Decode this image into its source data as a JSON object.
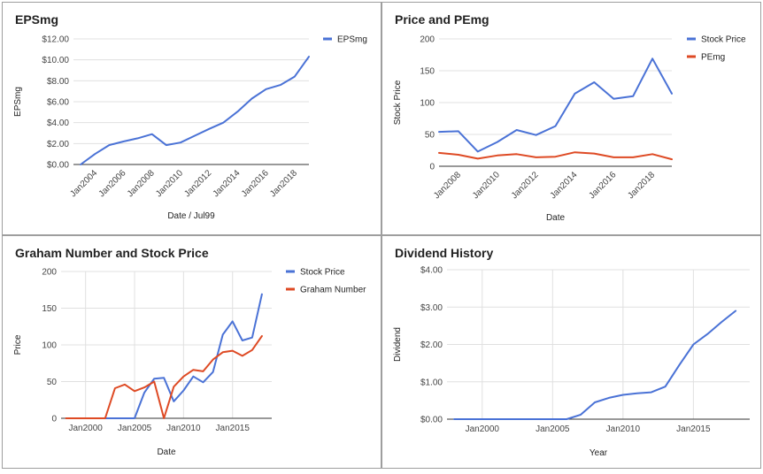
{
  "colors": {
    "blue": "#4a72d6",
    "red": "#de4a24"
  },
  "chart_data": [
    {
      "id": "eps",
      "type": "line",
      "title": "EPSmg",
      "xlabel": "Date / Jul99",
      "ylabel": "EPSmg",
      "xlim": [
        2002.5,
        2019
      ],
      "ylim": [
        0,
        12
      ],
      "xticks": [
        2004,
        2006,
        2008,
        2010,
        2012,
        2014,
        2016,
        2018
      ],
      "xtick_labels": [
        "Jan2004",
        "Jan2006",
        "Jan2008",
        "Jan2010",
        "Jan2012",
        "Jan2014",
        "Jan2016",
        "Jan2018"
      ],
      "xtick_rotate": true,
      "yticks": [
        0,
        2,
        4,
        6,
        8,
        10,
        12
      ],
      "ytick_labels": [
        "$0.00",
        "$2.00",
        "$4.00",
        "$6.00",
        "$8.00",
        "$10.00",
        "$12.00"
      ],
      "vgrid": false,
      "legend": "top-right",
      "series": [
        {
          "name": "EPSmg",
          "color": "#4a72d6",
          "x": [
            2003,
            2004,
            2005,
            2006,
            2007,
            2008,
            2009,
            2010,
            2011,
            2012,
            2013,
            2014,
            2015,
            2016,
            2017,
            2018,
            2019
          ],
          "y": [
            0.0,
            1.0,
            1.85,
            2.2,
            2.5,
            2.9,
            1.85,
            2.1,
            2.75,
            3.4,
            4.0,
            5.05,
            6.3,
            7.2,
            7.6,
            8.4,
            10.3
          ]
        }
      ]
    },
    {
      "id": "price-pe",
      "type": "line",
      "title": "Price and PEmg",
      "xlabel": "Date",
      "ylabel": "Stock Price",
      "xlim": [
        2007,
        2019
      ],
      "ylim": [
        0,
        200
      ],
      "xticks": [
        2008,
        2010,
        2012,
        2014,
        2016,
        2018
      ],
      "xtick_labels": [
        "Jan2008",
        "Jan2010",
        "Jan2012",
        "Jan2014",
        "Jan2016",
        "Jan2018"
      ],
      "xtick_rotate": true,
      "yticks": [
        0,
        50,
        100,
        150,
        200
      ],
      "ytick_labels": [
        "0",
        "50",
        "100",
        "150",
        "200"
      ],
      "vgrid": false,
      "legend": "top-right",
      "series": [
        {
          "name": "Stock Price",
          "color": "#4a72d6",
          "x": [
            2007,
            2008,
            2009,
            2010,
            2011,
            2012,
            2013,
            2014,
            2015,
            2016,
            2017,
            2018,
            2019
          ],
          "y": [
            54,
            55,
            23,
            38,
            57,
            49,
            63,
            114,
            132,
            106,
            110,
            169,
            114
          ]
        },
        {
          "name": "PEmg",
          "color": "#de4a24",
          "x": [
            2007,
            2008,
            2009,
            2010,
            2011,
            2012,
            2013,
            2014,
            2015,
            2016,
            2017,
            2018,
            2019
          ],
          "y": [
            21,
            18,
            12,
            17,
            19,
            14,
            15,
            22,
            20,
            14,
            14,
            19,
            11
          ]
        }
      ]
    },
    {
      "id": "graham",
      "type": "line",
      "title": "Graham Number and Stock Price",
      "xlabel": "Date",
      "ylabel": "Price",
      "xlim": [
        1997.5,
        2019
      ],
      "ylim": [
        0,
        200
      ],
      "xticks": [
        2000,
        2005,
        2010,
        2015
      ],
      "xtick_labels": [
        "Jan2000",
        "Jan2005",
        "Jan2010",
        "Jan2015"
      ],
      "xtick_rotate": false,
      "yticks": [
        0,
        50,
        100,
        150,
        200
      ],
      "ytick_labels": [
        "0",
        "50",
        "100",
        "150",
        "200"
      ],
      "vgrid": true,
      "legend": "top-right",
      "series": [
        {
          "name": "Stock Price",
          "color": "#4a72d6",
          "x": [
            1998,
            2005,
            2006,
            2007,
            2008,
            2009,
            2010,
            2011,
            2012,
            2013,
            2014,
            2015,
            2016,
            2017,
            2018
          ],
          "y": [
            0,
            0,
            35,
            54,
            55,
            23,
            38,
            57,
            49,
            63,
            114,
            132,
            106,
            110,
            169
          ]
        },
        {
          "name": "Graham Number",
          "color": "#de4a24",
          "x": [
            1998,
            2002,
            2003,
            2004,
            2005,
            2006,
            2007,
            2008,
            2009,
            2010,
            2011,
            2012,
            2013,
            2014,
            2015,
            2016,
            2017,
            2018
          ],
          "y": [
            0,
            0,
            41,
            46,
            37,
            42,
            50,
            0,
            43,
            57,
            66,
            64,
            80,
            90,
            92,
            85,
            93,
            112
          ]
        }
      ]
    },
    {
      "id": "dividend",
      "type": "line",
      "title": "Dividend History",
      "xlabel": "Year",
      "ylabel": "Dividend",
      "xlim": [
        1997.5,
        2019
      ],
      "ylim": [
        0,
        4
      ],
      "xticks": [
        2000,
        2005,
        2010,
        2015
      ],
      "xtick_labels": [
        "Jan2000",
        "Jan2005",
        "Jan2010",
        "Jan2015"
      ],
      "xtick_rotate": false,
      "yticks": [
        0,
        1,
        2,
        3,
        4
      ],
      "ytick_labels": [
        "$0.00",
        "$1.00",
        "$2.00",
        "$3.00",
        "$4.00"
      ],
      "vgrid": true,
      "legend": "none",
      "series": [
        {
          "name": "",
          "color": "#4a72d6",
          "x": [
            1998,
            2006,
            2007,
            2008,
            2009,
            2010,
            2011,
            2012,
            2013,
            2014,
            2015,
            2016,
            2017,
            2018
          ],
          "y": [
            0,
            0,
            0.12,
            0.45,
            0.57,
            0.65,
            0.69,
            0.72,
            0.87,
            1.45,
            2.0,
            2.28,
            2.6,
            2.9
          ]
        }
      ]
    }
  ]
}
